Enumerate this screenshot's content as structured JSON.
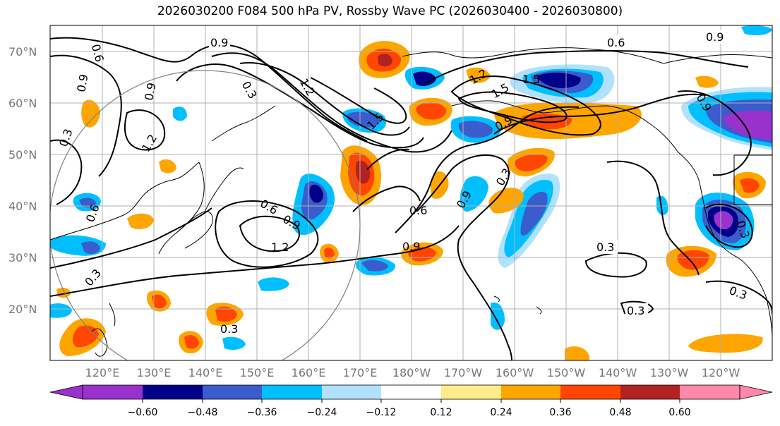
{
  "title": "2026030200 F084 500 hPa PV, Rossby Wave PC (2026030400 - 2026030800)",
  "lat_ticks": [
    "70°N",
    "60°N",
    "50°N",
    "40°N",
    "30°N",
    "20°N"
  ],
  "lon_ticks": [
    "120°E",
    "130°E",
    "140°E",
    "150°E",
    "160°E",
    "170°E",
    "180°W",
    "170°W",
    "160°W",
    "150°W",
    "140°W",
    "130°W",
    "120°W"
  ],
  "colorbar": {
    "colors": [
      "#9932cc",
      "#00008b",
      "#3a5ccc",
      "#00bfff",
      "#b0e2ff",
      "#ffffff",
      "#ffec8b",
      "#ffa500",
      "#ff4500",
      "#b22222",
      "#ff88aa"
    ],
    "tick_labels": [
      "−0.60",
      "−0.48",
      "−0.36",
      "−0.24",
      "−0.12",
      "0.12",
      "0.24",
      "0.36",
      "0.48",
      "0.60"
    ]
  },
  "contour_labels": [
    "0.9",
    "0.6",
    "0.9",
    "0.6",
    "0.9",
    "1.2",
    "0.3",
    "0.9",
    "1.2",
    "1.5",
    "1.5",
    "1.5",
    "1.2",
    "0.9",
    "0.9",
    "0.3",
    "0.6",
    "0.9",
    "0.6",
    "0.9",
    "1.2",
    "0.3",
    "0.3",
    "0.3",
    "0.3",
    "0.3",
    "0.3",
    "0.6",
    "0.9",
    "0.3"
  ]
}
